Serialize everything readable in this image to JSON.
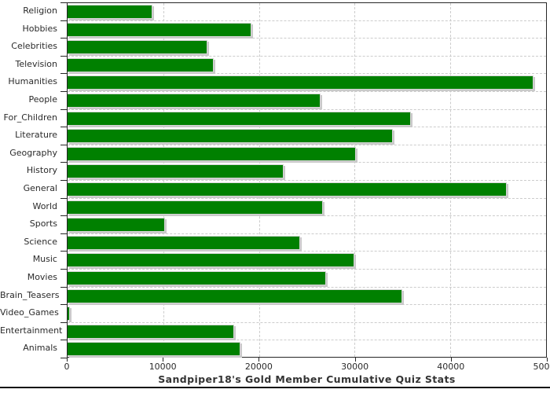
{
  "chart_data": {
    "type": "bar",
    "orientation": "horizontal",
    "title": "Sandpiper18's Gold Member Cumulative Quiz Stats",
    "categories": [
      "Religion",
      "Hobbies",
      "Celebrities",
      "Television",
      "Humanities",
      "People",
      "For_Children",
      "Literature",
      "Geography",
      "History",
      "General",
      "World",
      "Sports",
      "Science",
      "Music",
      "Movies",
      "Brain_Teasers",
      "Video_Games",
      "Entertainment",
      "Animals"
    ],
    "values": [
      8900,
      19200,
      14600,
      15300,
      48700,
      26400,
      35900,
      34000,
      30100,
      22600,
      45900,
      26700,
      10200,
      24300,
      30000,
      27000,
      35000,
      250,
      17400,
      18100
    ],
    "xlabel": "",
    "ylabel": "",
    "xlim": [
      0,
      50000
    ],
    "x_ticks": [
      0,
      10000,
      20000,
      30000,
      40000,
      50000
    ],
    "x_tick_labels": [
      "0",
      "10000",
      "20000",
      "30000",
      "40000",
      "50000"
    ],
    "grid": true,
    "legend": "none",
    "bar_color": "#008000",
    "grid_color": "#cccccc",
    "axis_color": "#262626",
    "text_color": "#2b2b2b",
    "background": "#ffffff"
  }
}
